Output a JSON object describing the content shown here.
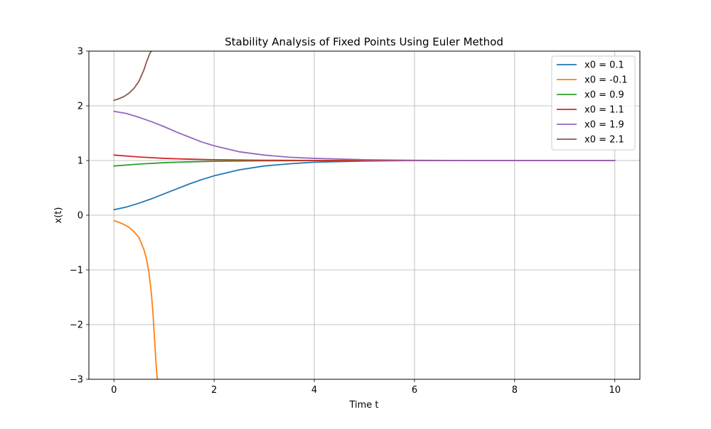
{
  "chart_data": {
    "type": "line",
    "title": "Stability Analysis of Fixed Points Using Euler Method",
    "xlabel": "Time t",
    "ylabel": "x(t)",
    "xlim": [
      -0.5,
      10.5
    ],
    "ylim": [
      -3,
      3
    ],
    "xticks": [
      0,
      2,
      4,
      6,
      8,
      10
    ],
    "yticks": [
      -3,
      -2,
      -1,
      0,
      1,
      2,
      3
    ],
    "xtick_labels": [
      "0",
      "2",
      "4",
      "6",
      "8",
      "10"
    ],
    "ytick_labels": [
      "−3",
      "−2",
      "−1",
      "0",
      "1",
      "2",
      "3"
    ],
    "grid": true,
    "legend_position": "upper-right",
    "series": [
      {
        "name": "x0 = 0.1",
        "color": "#1f77b4",
        "x": [
          0,
          0.25,
          0.5,
          0.75,
          1.0,
          1.25,
          1.5,
          1.75,
          2.0,
          2.5,
          3.0,
          3.5,
          4.0,
          5.0,
          6.0,
          7.0,
          8.0,
          9.0,
          10.0
        ],
        "y": [
          0.1,
          0.15,
          0.22,
          0.3,
          0.39,
          0.48,
          0.57,
          0.65,
          0.72,
          0.83,
          0.9,
          0.94,
          0.97,
          0.99,
          1.0,
          1.0,
          1.0,
          1.0,
          1.0
        ]
      },
      {
        "name": "x0 = -0.1",
        "color": "#ff7f0e",
        "x": [
          0,
          0.1,
          0.2,
          0.3,
          0.4,
          0.5,
          0.6,
          0.65,
          0.7,
          0.75,
          0.78,
          0.8,
          0.82,
          0.84,
          0.86,
          0.875
        ],
        "y": [
          -0.1,
          -0.13,
          -0.17,
          -0.22,
          -0.3,
          -0.41,
          -0.63,
          -0.8,
          -1.05,
          -1.45,
          -1.8,
          -2.1,
          -2.4,
          -2.7,
          -2.95,
          -3.0
        ]
      },
      {
        "name": "x0 = 0.9",
        "color": "#2ca02c",
        "x": [
          0,
          0.5,
          1.0,
          1.5,
          2.0,
          2.5,
          3.0,
          4.0,
          5.0,
          6.0,
          8.0,
          10.0
        ],
        "y": [
          0.9,
          0.935,
          0.96,
          0.975,
          0.985,
          0.99,
          0.995,
          0.998,
          1.0,
          1.0,
          1.0,
          1.0
        ]
      },
      {
        "name": "x0 = 1.1",
        "color": "#d62728",
        "x": [
          0,
          0.5,
          1.0,
          1.5,
          2.0,
          2.5,
          3.0,
          4.0,
          5.0,
          6.0,
          8.0,
          10.0
        ],
        "y": [
          1.1,
          1.065,
          1.04,
          1.025,
          1.015,
          1.01,
          1.005,
          1.002,
          1.0,
          1.0,
          1.0,
          1.0
        ]
      },
      {
        "name": "x0 = 1.9",
        "color": "#9467bd",
        "x": [
          0,
          0.25,
          0.5,
          0.75,
          1.0,
          1.25,
          1.5,
          1.75,
          2.0,
          2.5,
          3.0,
          3.5,
          4.0,
          5.0,
          6.0,
          7.0,
          8.0,
          9.0,
          10.0
        ],
        "y": [
          1.9,
          1.86,
          1.79,
          1.71,
          1.62,
          1.52,
          1.43,
          1.34,
          1.27,
          1.16,
          1.1,
          1.06,
          1.04,
          1.015,
          1.005,
          1.0,
          1.0,
          1.0,
          1.0
        ]
      },
      {
        "name": "x0 = 2.1",
        "color": "#8c564b",
        "x": [
          0,
          0.1,
          0.2,
          0.3,
          0.4,
          0.5,
          0.6,
          0.65,
          0.7,
          0.73,
          0.75
        ],
        "y": [
          2.1,
          2.13,
          2.17,
          2.23,
          2.32,
          2.45,
          2.66,
          2.8,
          2.92,
          2.98,
          3.0
        ]
      }
    ]
  }
}
